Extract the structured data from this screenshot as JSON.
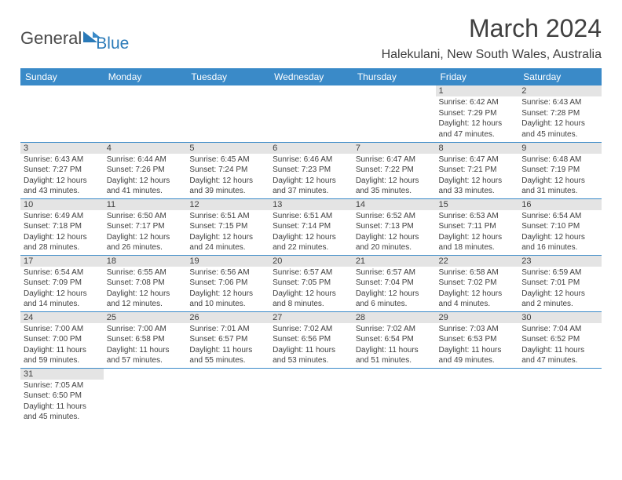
{
  "logo": {
    "part1": "General",
    "part2": "Blue"
  },
  "title": "March 2024",
  "location": "Halekulani, New South Wales, Australia",
  "colors": {
    "header_bg": "#3a8ac8",
    "header_text": "#ffffff",
    "daynum_bg": "#e4e4e4",
    "text": "#404040",
    "border": "#3a8ac8",
    "background": "#ffffff"
  },
  "weekdays": [
    "Sunday",
    "Monday",
    "Tuesday",
    "Wednesday",
    "Thursday",
    "Friday",
    "Saturday"
  ],
  "weeks": [
    [
      null,
      null,
      null,
      null,
      null,
      {
        "n": "1",
        "sr": "6:42 AM",
        "ss": "7:29 PM",
        "dl": "12 hours and 47 minutes."
      },
      {
        "n": "2",
        "sr": "6:43 AM",
        "ss": "7:28 PM",
        "dl": "12 hours and 45 minutes."
      }
    ],
    [
      {
        "n": "3",
        "sr": "6:43 AM",
        "ss": "7:27 PM",
        "dl": "12 hours and 43 minutes."
      },
      {
        "n": "4",
        "sr": "6:44 AM",
        "ss": "7:26 PM",
        "dl": "12 hours and 41 minutes."
      },
      {
        "n": "5",
        "sr": "6:45 AM",
        "ss": "7:24 PM",
        "dl": "12 hours and 39 minutes."
      },
      {
        "n": "6",
        "sr": "6:46 AM",
        "ss": "7:23 PM",
        "dl": "12 hours and 37 minutes."
      },
      {
        "n": "7",
        "sr": "6:47 AM",
        "ss": "7:22 PM",
        "dl": "12 hours and 35 minutes."
      },
      {
        "n": "8",
        "sr": "6:47 AM",
        "ss": "7:21 PM",
        "dl": "12 hours and 33 minutes."
      },
      {
        "n": "9",
        "sr": "6:48 AM",
        "ss": "7:19 PM",
        "dl": "12 hours and 31 minutes."
      }
    ],
    [
      {
        "n": "10",
        "sr": "6:49 AM",
        "ss": "7:18 PM",
        "dl": "12 hours and 28 minutes."
      },
      {
        "n": "11",
        "sr": "6:50 AM",
        "ss": "7:17 PM",
        "dl": "12 hours and 26 minutes."
      },
      {
        "n": "12",
        "sr": "6:51 AM",
        "ss": "7:15 PM",
        "dl": "12 hours and 24 minutes."
      },
      {
        "n": "13",
        "sr": "6:51 AM",
        "ss": "7:14 PM",
        "dl": "12 hours and 22 minutes."
      },
      {
        "n": "14",
        "sr": "6:52 AM",
        "ss": "7:13 PM",
        "dl": "12 hours and 20 minutes."
      },
      {
        "n": "15",
        "sr": "6:53 AM",
        "ss": "7:11 PM",
        "dl": "12 hours and 18 minutes."
      },
      {
        "n": "16",
        "sr": "6:54 AM",
        "ss": "7:10 PM",
        "dl": "12 hours and 16 minutes."
      }
    ],
    [
      {
        "n": "17",
        "sr": "6:54 AM",
        "ss": "7:09 PM",
        "dl": "12 hours and 14 minutes."
      },
      {
        "n": "18",
        "sr": "6:55 AM",
        "ss": "7:08 PM",
        "dl": "12 hours and 12 minutes."
      },
      {
        "n": "19",
        "sr": "6:56 AM",
        "ss": "7:06 PM",
        "dl": "12 hours and 10 minutes."
      },
      {
        "n": "20",
        "sr": "6:57 AM",
        "ss": "7:05 PM",
        "dl": "12 hours and 8 minutes."
      },
      {
        "n": "21",
        "sr": "6:57 AM",
        "ss": "7:04 PM",
        "dl": "12 hours and 6 minutes."
      },
      {
        "n": "22",
        "sr": "6:58 AM",
        "ss": "7:02 PM",
        "dl": "12 hours and 4 minutes."
      },
      {
        "n": "23",
        "sr": "6:59 AM",
        "ss": "7:01 PM",
        "dl": "12 hours and 2 minutes."
      }
    ],
    [
      {
        "n": "24",
        "sr": "7:00 AM",
        "ss": "7:00 PM",
        "dl": "11 hours and 59 minutes."
      },
      {
        "n": "25",
        "sr": "7:00 AM",
        "ss": "6:58 PM",
        "dl": "11 hours and 57 minutes."
      },
      {
        "n": "26",
        "sr": "7:01 AM",
        "ss": "6:57 PM",
        "dl": "11 hours and 55 minutes."
      },
      {
        "n": "27",
        "sr": "7:02 AM",
        "ss": "6:56 PM",
        "dl": "11 hours and 53 minutes."
      },
      {
        "n": "28",
        "sr": "7:02 AM",
        "ss": "6:54 PM",
        "dl": "11 hours and 51 minutes."
      },
      {
        "n": "29",
        "sr": "7:03 AM",
        "ss": "6:53 PM",
        "dl": "11 hours and 49 minutes."
      },
      {
        "n": "30",
        "sr": "7:04 AM",
        "ss": "6:52 PM",
        "dl": "11 hours and 47 minutes."
      }
    ],
    [
      {
        "n": "31",
        "sr": "7:05 AM",
        "ss": "6:50 PM",
        "dl": "11 hours and 45 minutes."
      },
      null,
      null,
      null,
      null,
      null,
      null
    ]
  ],
  "labels": {
    "sunrise": "Sunrise:",
    "sunset": "Sunset:",
    "daylight": "Daylight:"
  }
}
